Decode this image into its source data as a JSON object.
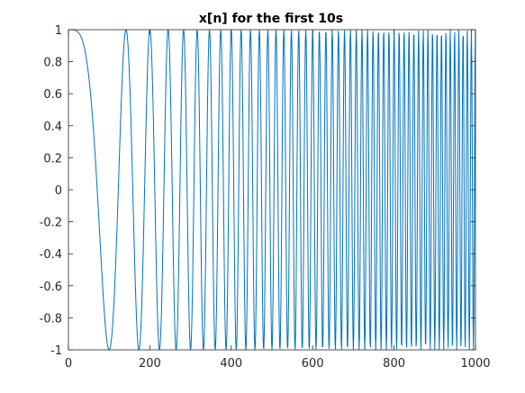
{
  "chart_data": {
    "type": "line",
    "title": "x[n] for the first 10s",
    "xlabel": "",
    "ylabel": "",
    "xlim": [
      0,
      1000
    ],
    "ylim": [
      -1,
      1
    ],
    "x_ticks": [
      0,
      200,
      400,
      600,
      800,
      1000
    ],
    "x_tick_labels": [
      "0",
      "200",
      "400",
      "600",
      "800",
      "1000"
    ],
    "y_ticks": [
      1,
      0.8,
      0.6,
      0.4,
      0.2,
      0,
      -0.2,
      -0.4,
      -0.6,
      -0.8,
      -1
    ],
    "y_tick_labels": [
      "1",
      "0.8",
      "0.6",
      "0.4",
      "0.2",
      "0",
      "-0.2",
      "-0.4",
      "-0.6",
      "-0.8",
      "-1"
    ],
    "grid": false,
    "box": true,
    "series": [
      {
        "color": "#0072bd",
        "signal": "cos(pi * n^2 / 10000)",
        "n_start": 0,
        "n_end": 1000,
        "n_step": 1
      }
    ]
  }
}
